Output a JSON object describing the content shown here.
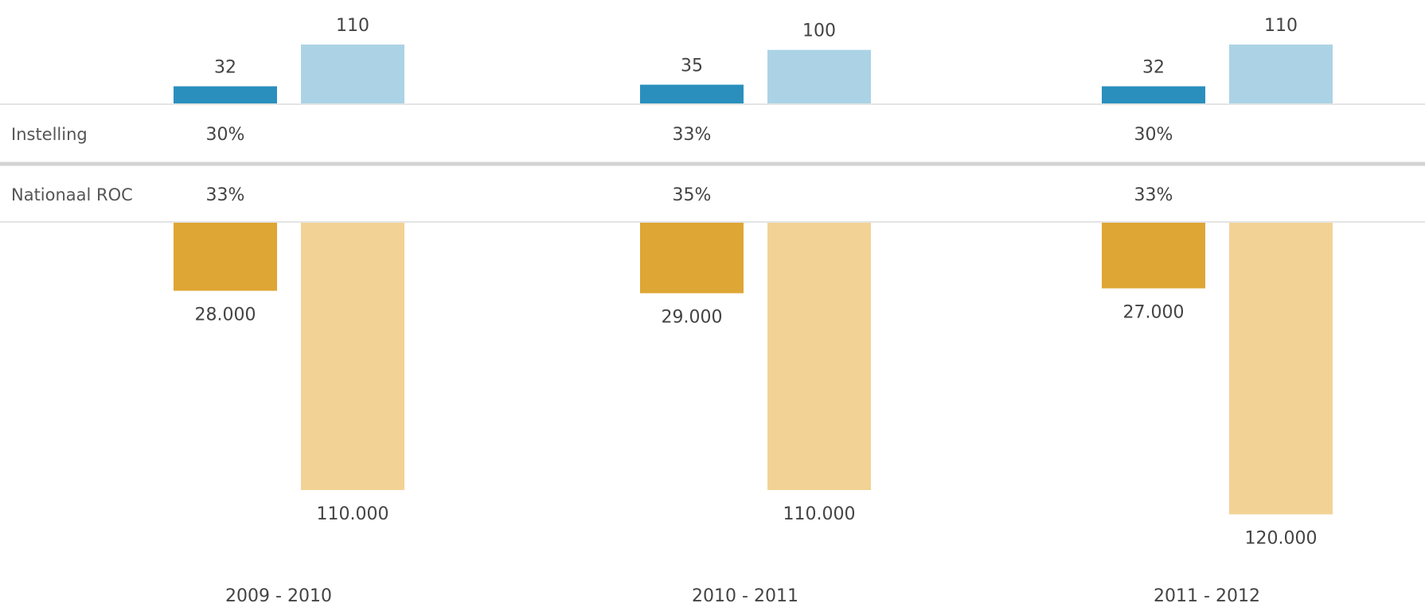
{
  "colors": {
    "top_dark": "#2a8fbd",
    "top_light": "#abd3e5",
    "bottom_dark": "#dea634",
    "bottom_light": "#f3d295",
    "label_text": "#444444",
    "rule": "#dcdcdc",
    "rule_thick": "#d3d3d3"
  },
  "rows": [
    {
      "label": "Instelling",
      "values": [
        "30%",
        "33%",
        "30%"
      ]
    },
    {
      "label": "Nationaal ROC",
      "values": [
        "33%",
        "35%",
        "33%"
      ]
    }
  ],
  "chart_data": {
    "type": "bar",
    "categories": [
      "2009 - 2010",
      "2010 - 2011",
      "2011 - 2012"
    ],
    "top_series": [
      {
        "values": [
          32,
          35,
          32
        ],
        "labels": [
          "32",
          "35",
          "32"
        ]
      },
      {
        "values": [
          110,
          100,
          110
        ],
        "labels": [
          "110",
          "100",
          "110"
        ]
      }
    ],
    "bottom_series": [
      {
        "values": [
          28000,
          29000,
          27000
        ],
        "labels": [
          "28.000",
          "29.000",
          "27.000"
        ]
      },
      {
        "values": [
          110000,
          110000,
          120000
        ],
        "labels": [
          "110.000",
          "110.000",
          "120.000"
        ]
      }
    ],
    "grid": false,
    "legend": "none"
  }
}
